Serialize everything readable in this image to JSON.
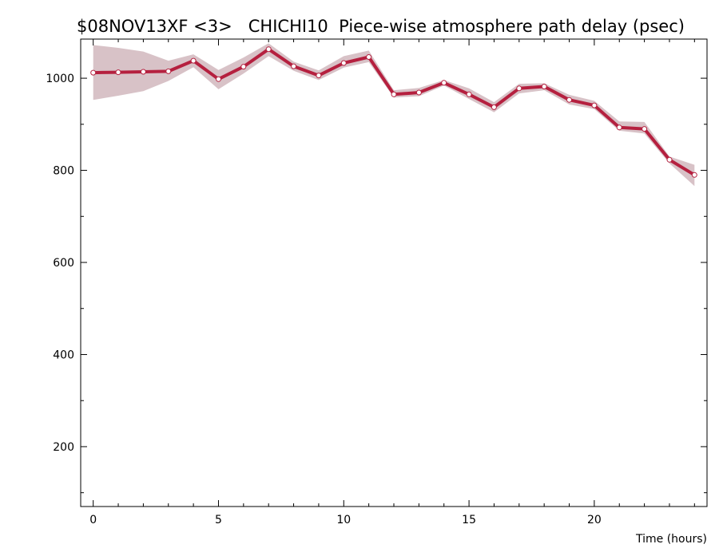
{
  "chart_data": {
    "type": "line",
    "title": "$08NOV13XF <3>   CHICHI10  Piece-wise atmosphere path delay (psec)",
    "xlabel": "Time (hours)",
    "ylabel": "",
    "xlim": [
      -0.5,
      24.5
    ],
    "ylim": [
      70,
      1085
    ],
    "x_ticks_major": [
      0,
      5,
      10,
      15,
      20
    ],
    "x_ticks_minor": [
      1,
      2,
      3,
      4,
      6,
      7,
      8,
      9,
      11,
      12,
      13,
      14,
      16,
      17,
      18,
      19,
      21,
      22,
      23,
      24
    ],
    "y_ticks_major": [
      200,
      400,
      600,
      800,
      1000
    ],
    "y_ticks_minor": [
      100,
      300,
      500,
      700,
      900
    ],
    "grid": false,
    "colors": {
      "line": "#b5203f",
      "band": "#d8c2c7",
      "marker_fill": "#ffffff"
    },
    "series": [
      {
        "x": [
          0,
          1,
          2,
          3,
          4,
          5,
          6,
          7,
          8,
          9,
          10,
          11,
          12,
          13,
          14,
          15,
          16,
          17,
          18,
          19,
          20,
          21,
          22,
          23,
          24
        ],
        "values": [
          1012,
          1013,
          1014,
          1015,
          1038,
          998,
          1025,
          1063,
          1026,
          1006,
          1033,
          1046,
          965,
          969,
          990,
          965,
          937,
          978,
          982,
          953,
          941,
          893,
          890,
          823,
          790
        ],
        "band_upper": [
          1072,
          1066,
          1058,
          1038,
          1052,
          1018,
          1045,
          1076,
          1036,
          1017,
          1048,
          1060,
          974,
          979,
          996,
          978,
          948,
          988,
          989,
          964,
          951,
          906,
          905,
          830,
          812
        ],
        "band_lower": [
          953,
          962,
          972,
          994,
          1024,
          976,
          1010,
          1048,
          1016,
          996,
          1023,
          1035,
          958,
          961,
          984,
          955,
          926,
          967,
          974,
          943,
          933,
          886,
          880,
          815,
          766
        ]
      }
    ]
  }
}
